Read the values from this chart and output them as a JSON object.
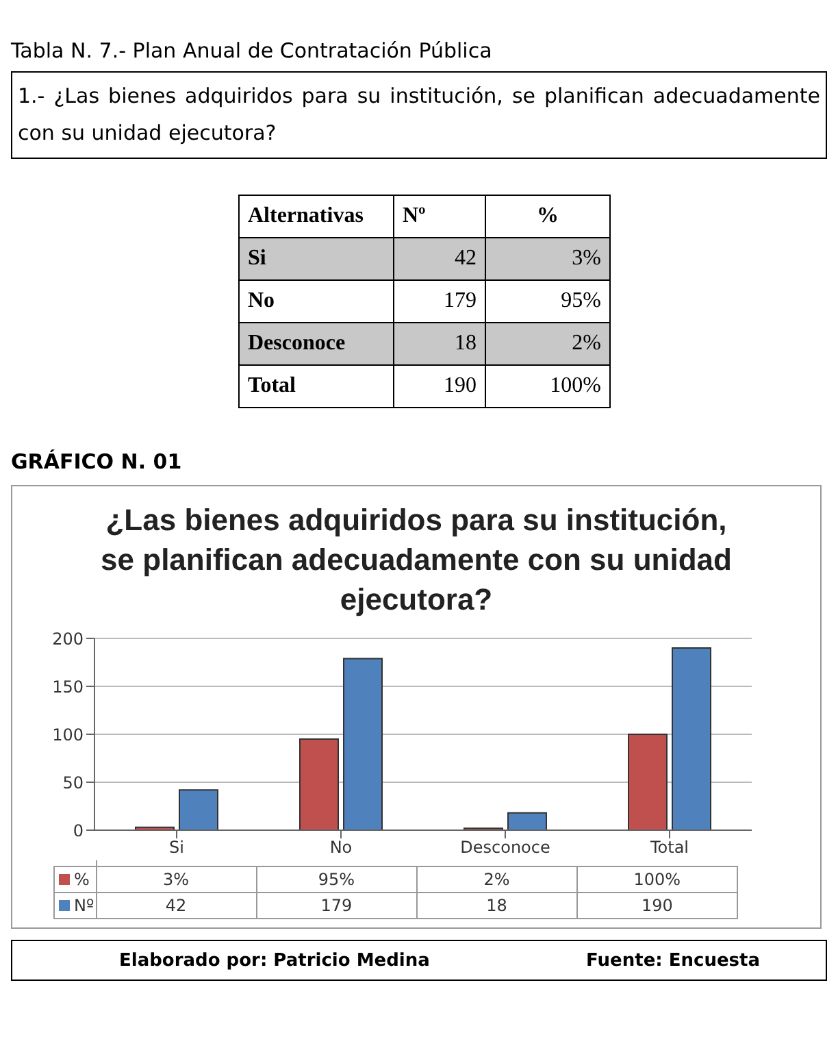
{
  "chart_data": {
    "type": "bar",
    "title": "¿Las bienes adquiridos para su institución, se planifican adecuadamente con su unidad ejecutora?",
    "annotations": [
      "Tabla N. 7.-  Plan Anual de Contratación Pública",
      "1.- ¿Las bienes adquiridos para su institución, se planifican adecuadamente con su unidad ejecutora?",
      "Alternativas",
      "GRÁFICO N. 01",
      "Elaborado por: Patricio Medina",
      "Fuente: Encuesta"
    ],
    "categories": [
      "Si",
      "No",
      "Desconoce",
      "Total"
    ],
    "series": [
      {
        "name": "%",
        "color": "#c0504d",
        "values": [
          3,
          95,
          2,
          100
        ],
        "value_labels": [
          "3%",
          "95%",
          "2%",
          "100%"
        ]
      },
      {
        "name": "Nº",
        "color": "#4f81bd",
        "values": [
          42,
          179,
          18,
          190
        ],
        "value_labels": [
          "42",
          "179",
          "18",
          "190"
        ]
      }
    ],
    "ylim": [
      0,
      200
    ],
    "yticks": [
      0,
      50,
      100,
      150,
      200
    ],
    "grid": "y",
    "legend": "bottom"
  }
}
